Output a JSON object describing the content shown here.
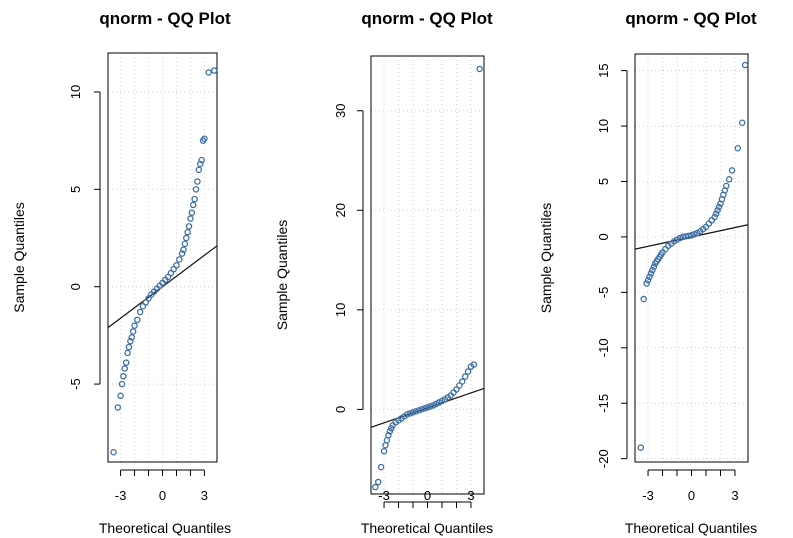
{
  "chart_data": [
    {
      "type": "scatter",
      "title": "qnorm - QQ Plot",
      "xlabel": "Theoretical Quantiles",
      "ylabel": "Sample Quantiles",
      "xlim": [
        -3.9,
        3.9
      ],
      "ylim": [
        -9.0,
        12.0
      ],
      "xticks": [
        -3,
        -2,
        -1,
        0,
        1,
        2,
        3
      ],
      "xtick_labels": [
        "-3",
        "",
        "",
        "0",
        "",
        "",
        "3"
      ],
      "yticks": [
        -5,
        0,
        5,
        10
      ],
      "ytick_labels": [
        "-5",
        "0",
        "5",
        "10"
      ],
      "grid": true,
      "point_color": "#3d6fa6",
      "reference_line": {
        "x": [
          -3.9,
          3.9
        ],
        "y": [
          -2.1,
          2.1
        ]
      },
      "series": [
        {
          "x": [
            -3.5,
            -3.2,
            -3.0,
            -2.9,
            -2.8,
            -2.7,
            -2.6,
            -2.5,
            -2.4,
            -2.3,
            -2.2,
            -2.1,
            -2.0,
            -1.8,
            -1.6,
            -1.4,
            -1.2,
            -1.0,
            -0.8,
            -0.6,
            -0.4,
            -0.2,
            0.0,
            0.2,
            0.4,
            0.6,
            0.8,
            1.0,
            1.2,
            1.4,
            1.5,
            1.6,
            1.7,
            1.8,
            1.9,
            2.0,
            2.1,
            2.2,
            2.3,
            2.4,
            2.5,
            2.6,
            2.7,
            2.8,
            2.9,
            3.0,
            3.3,
            3.7
          ],
          "y": [
            -8.5,
            -6.2,
            -5.6,
            -5.0,
            -4.6,
            -4.2,
            -3.9,
            -3.4,
            -3.1,
            -2.8,
            -2.6,
            -2.3,
            -2.0,
            -1.7,
            -1.3,
            -1.0,
            -0.8,
            -0.6,
            -0.4,
            -0.25,
            -0.1,
            0.05,
            0.2,
            0.35,
            0.5,
            0.7,
            0.9,
            1.1,
            1.4,
            1.7,
            1.9,
            2.2,
            2.5,
            2.8,
            3.1,
            3.5,
            3.8,
            4.2,
            4.5,
            5.0,
            5.4,
            6.0,
            6.3,
            6.5,
            7.5,
            7.6,
            11.0,
            11.1
          ]
        }
      ]
    },
    {
      "type": "scatter",
      "title": "qnorm - QQ Plot",
      "xlabel": "Theoretical Quantiles",
      "ylabel": "Sample Quantiles",
      "xlim": [
        -3.9,
        3.9
      ],
      "ylim": [
        -8.5,
        35.5
      ],
      "xticks": [
        -3,
        -2,
        -1,
        0,
        1,
        2,
        3
      ],
      "xtick_labels": [
        "-3",
        "",
        "",
        "0",
        "",
        "",
        "3"
      ],
      "yticks": [
        0,
        10,
        20,
        30
      ],
      "ytick_labels": [
        "0",
        "10",
        "20",
        "30"
      ],
      "grid": true,
      "point_color": "#3d6fa6",
      "reference_line": {
        "x": [
          -3.9,
          3.9
        ],
        "y": [
          -1.8,
          2.1
        ]
      },
      "series": [
        {
          "x": [
            -3.6,
            -3.4,
            -3.2,
            -3.0,
            -2.9,
            -2.8,
            -2.7,
            -2.6,
            -2.5,
            -2.4,
            -2.2,
            -2.0,
            -1.8,
            -1.6,
            -1.4,
            -1.2,
            -1.0,
            -0.8,
            -0.6,
            -0.4,
            -0.2,
            0.0,
            0.2,
            0.4,
            0.6,
            0.8,
            1.0,
            1.2,
            1.4,
            1.6,
            1.8,
            2.0,
            2.2,
            2.4,
            2.6,
            2.8,
            3.0,
            3.2,
            3.6
          ],
          "y": [
            -7.8,
            -7.3,
            -5.8,
            -4.2,
            -3.6,
            -3.1,
            -2.6,
            -2.2,
            -1.9,
            -1.6,
            -1.3,
            -1.1,
            -0.9,
            -0.7,
            -0.5,
            -0.4,
            -0.3,
            -0.2,
            -0.1,
            0.0,
            0.1,
            0.2,
            0.3,
            0.4,
            0.55,
            0.7,
            0.85,
            1.0,
            1.2,
            1.4,
            1.7,
            2.0,
            2.4,
            2.8,
            3.3,
            3.8,
            4.3,
            4.5,
            34.2
          ]
        }
      ]
    },
    {
      "type": "scatter",
      "title": "qnorm - QQ Plot",
      "xlabel": "Theoretical Quantiles",
      "ylabel": "Sample Quantiles",
      "xlim": [
        -3.9,
        3.9
      ],
      "ylim": [
        -20.3,
        16.5
      ],
      "xticks": [
        -3,
        -2,
        -1,
        0,
        1,
        2,
        3
      ],
      "xtick_labels": [
        "-3",
        "",
        "",
        "0",
        "",
        "",
        "3"
      ],
      "yticks": [
        -20,
        -15,
        -10,
        -5,
        0,
        5,
        10,
        15
      ],
      "ytick_labels": [
        "-20",
        "-15",
        "-10",
        "-5",
        "0",
        "5",
        "10",
        "15"
      ],
      "grid": true,
      "point_color": "#3d6fa6",
      "reference_line": {
        "x": [
          -3.9,
          3.9
        ],
        "y": [
          -1.1,
          1.1
        ]
      },
      "series": [
        {
          "x": [
            -3.5,
            -3.3,
            -3.1,
            -3.0,
            -2.9,
            -2.8,
            -2.7,
            -2.6,
            -2.5,
            -2.4,
            -2.3,
            -2.2,
            -2.1,
            -2.0,
            -1.8,
            -1.6,
            -1.4,
            -1.2,
            -1.0,
            -0.8,
            -0.6,
            -0.4,
            -0.2,
            0.0,
            0.2,
            0.4,
            0.6,
            0.8,
            1.0,
            1.2,
            1.4,
            1.6,
            1.7,
            1.8,
            1.9,
            2.0,
            2.1,
            2.2,
            2.3,
            2.4,
            2.6,
            2.8,
            3.2,
            3.5,
            3.7
          ],
          "y": [
            -19.0,
            -5.6,
            -4.2,
            -3.9,
            -3.6,
            -3.3,
            -3.0,
            -2.7,
            -2.4,
            -2.2,
            -2.0,
            -1.8,
            -1.6,
            -1.4,
            -1.1,
            -0.8,
            -0.6,
            -0.4,
            -0.25,
            -0.1,
            0.0,
            0.05,
            0.1,
            0.15,
            0.25,
            0.35,
            0.5,
            0.7,
            0.9,
            1.2,
            1.5,
            1.8,
            2.1,
            2.4,
            2.7,
            3.0,
            3.4,
            3.8,
            4.2,
            4.6,
            5.2,
            6.0,
            8.0,
            10.3,
            15.5
          ]
        }
      ]
    }
  ]
}
